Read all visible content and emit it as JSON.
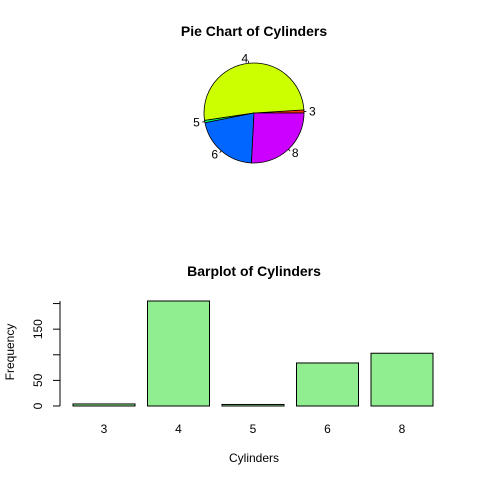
{
  "chart_data": [
    {
      "type": "pie",
      "title": "Pie Chart of Cylinders",
      "labels": [
        "3",
        "4",
        "5",
        "6",
        "8"
      ],
      "values": [
        4,
        205,
        3,
        84,
        103
      ],
      "colors": [
        "#ff3300",
        "#ccff00",
        "#00ff66",
        "#0066ff",
        "#cc00ff"
      ],
      "direction": "counterclockwise",
      "start": "3 o'clock"
    },
    {
      "type": "bar",
      "title": "Barplot of Cylinders",
      "xlabel": "Cylinders",
      "ylabel": "Frequency",
      "categories": [
        "3",
        "4",
        "5",
        "6",
        "8"
      ],
      "values": [
        4,
        205,
        3,
        84,
        103
      ],
      "ylim": [
        0,
        205
      ],
      "yticks": [
        0,
        50,
        150
      ],
      "bar_color": "#90ee90",
      "grid": false
    }
  ]
}
